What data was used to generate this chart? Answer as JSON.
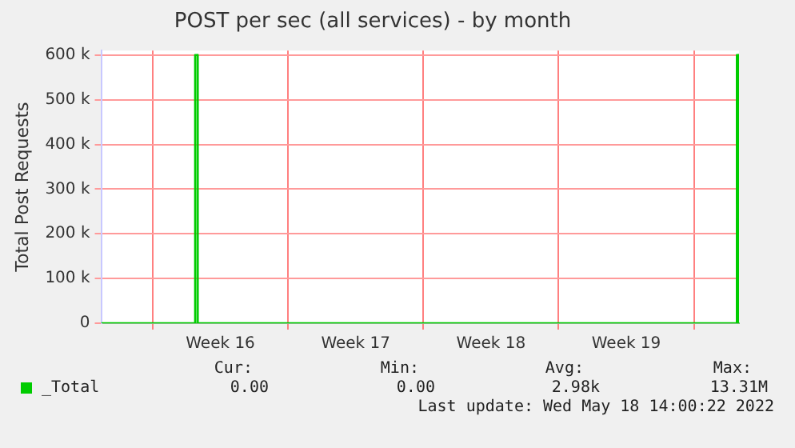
{
  "chart_data": {
    "type": "area",
    "title": "POST per sec (all services) - by month",
    "ylabel": "Total Post Requests",
    "x": [
      "2022-04-15T08:00",
      "2022-04-20T04:30",
      "2022-04-20T04:35",
      "2022-04-20T07:55",
      "2022-04-20T08:00",
      "2022-05-18T05:10",
      "2022-05-18T05:15",
      "2022-05-18T07:35",
      "2022-05-18T07:40",
      "2022-05-18T08:00"
    ],
    "series": [
      {
        "name": "_Total",
        "color": "#00cc00",
        "values": [
          0,
          0,
          600000,
          600000,
          0,
          0,
          600000,
          600000,
          0,
          0
        ]
      }
    ],
    "xlim": [
      "2022-04-15T08:00",
      "2022-05-18T08:00"
    ],
    "xticks": [
      {
        "value": "2022-04-18T00:00",
        "label": null
      },
      {
        "value": "2022-04-21T12:00",
        "label": "Week 16"
      },
      {
        "value": "2022-04-25T00:00",
        "label": null
      },
      {
        "value": "2022-04-28T12:00",
        "label": "Week 17"
      },
      {
        "value": "2022-05-02T00:00",
        "label": null
      },
      {
        "value": "2022-05-05T12:00",
        "label": "Week 18"
      },
      {
        "value": "2022-05-09T00:00",
        "label": null
      },
      {
        "value": "2022-05-12T12:00",
        "label": "Week 19"
      },
      {
        "value": "2022-05-16T00:00",
        "label": null
      }
    ],
    "ylim": [
      0,
      610000
    ],
    "yticks": [
      0,
      {
        "value": 100000,
        "label": "100 k"
      },
      {
        "value": 200000,
        "label": "200 k"
      },
      {
        "value": 300000,
        "label": "300 k"
      },
      {
        "value": 400000,
        "label": "400 k"
      },
      {
        "value": 500000,
        "label": "500 k"
      },
      {
        "value": 600000,
        "label": "600 k"
      }
    ],
    "grid": true,
    "legend": "bottom left",
    "annotations": [
      "Cur:",
      "Min:",
      "Avg:",
      "Max:",
      "0.00",
      "0.00",
      "2.98k",
      "13.31M",
      "Last update: Wed May 18 14:00:22 2022"
    ]
  }
}
